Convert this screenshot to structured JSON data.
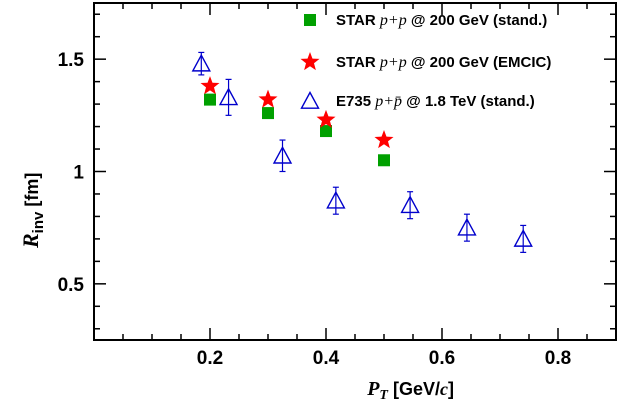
{
  "chart_data": {
    "type": "scatter",
    "title": "",
    "xlabel": {
      "symbol": "P",
      "subscript": "T",
      "unit_pre": " [GeV/",
      "unit_math": "c",
      "unit_post": "]"
    },
    "ylabel": {
      "symbol": "R",
      "subscript": "inv",
      "unit": " [fm]"
    },
    "xlim": [
      0.0,
      0.9
    ],
    "ylim": [
      0.25,
      1.75
    ],
    "x_ticks": [
      0.2,
      0.4,
      0.6,
      0.8
    ],
    "x_tick_labels": [
      "0.2",
      "0.4",
      "0.6",
      "0.8"
    ],
    "y_ticks": [
      0.5,
      1.0,
      1.5
    ],
    "y_tick_labels": [
      "0.5",
      "1",
      "1.5"
    ],
    "grid": false,
    "legend_position": "top-right",
    "series": [
      {
        "name": "STAR p+p @ 200 GeV (stand.)",
        "label_parts": [
          "STAR ",
          "p+p",
          " @ 200 GeV (stand.)"
        ],
        "marker": "square",
        "color": "#00a000",
        "x": [
          0.2,
          0.3,
          0.4,
          0.5
        ],
        "y": [
          1.32,
          1.26,
          1.18,
          1.05
        ],
        "err": [
          0,
          0,
          0,
          0
        ]
      },
      {
        "name": "STAR p+p @ 200 GeV (EMCIC)",
        "label_parts": [
          "STAR ",
          "p+p",
          " @ 200 GeV (EMCIC)"
        ],
        "marker": "star",
        "color": "#ff0000",
        "x": [
          0.2,
          0.3,
          0.4,
          0.5
        ],
        "y": [
          1.38,
          1.32,
          1.23,
          1.14
        ],
        "err": [
          0,
          0,
          0,
          0
        ]
      },
      {
        "name": "E735 p+p̄ @ 1.8 TeV (stand.)",
        "label_parts": [
          "E735 ",
          "p+p̄",
          " @ 1.8 TeV (stand.)"
        ],
        "marker": "open-triangle",
        "color": "#0000cc",
        "x": [
          0.185,
          0.232,
          0.325,
          0.417,
          0.545,
          0.643,
          0.74
        ],
        "y": [
          1.48,
          1.33,
          1.07,
          0.87,
          0.85,
          0.75,
          0.7
        ],
        "err": [
          0.05,
          0.08,
          0.07,
          0.06,
          0.06,
          0.06,
          0.06
        ]
      }
    ]
  }
}
